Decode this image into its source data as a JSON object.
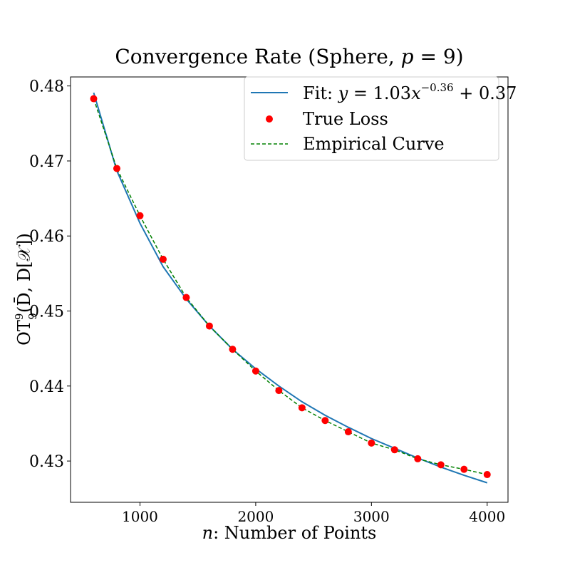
{
  "chart_data": {
    "type": "line",
    "title_prefix": "Convergence Rate (Sphere, ",
    "title_var": "p",
    "title_suffix": " = 9)",
    "xlabel_var": "n",
    "xlabel_text": ": Number of Points",
    "ylabel": {
      "base": "OT",
      "sup": "9",
      "sub": "9",
      "args": "(D̄, D[𝒳])"
    },
    "xlim": [
      400,
      4180
    ],
    "ylim": [
      0.4245,
      0.4812
    ],
    "xticks": [
      1000,
      2000,
      3000,
      4000
    ],
    "yticks": [
      0.43,
      0.44,
      0.45,
      0.46,
      0.47,
      0.48
    ],
    "legend_position": "upper right",
    "legend": {
      "fit": {
        "prefix": "Fit: ",
        "var": "y",
        "eq": " = 1.03",
        "x": "x",
        "exp": "−0.36",
        "tail": " + 0.37"
      },
      "true_loss": "True Loss",
      "empirical": "Empirical Curve"
    },
    "colors": {
      "fit": "#1f77b4",
      "true_loss": "#ff0000",
      "empirical": "#008000"
    },
    "x": [
      600,
      800,
      1000,
      1200,
      1400,
      1600,
      1800,
      2000,
      2200,
      2400,
      2600,
      2800,
      3000,
      3200,
      3400,
      3600,
      3800,
      4000
    ],
    "series": [
      {
        "name": "Fit",
        "style": "solid-line",
        "values": [
          0.4791,
          0.4687,
          0.4617,
          0.4559,
          0.4516,
          0.448,
          0.4449,
          0.4423,
          0.44,
          0.4379,
          0.4361,
          0.4345,
          0.433,
          0.4317,
          0.4304,
          0.4292,
          0.4281,
          0.4271
        ]
      },
      {
        "name": "True Loss",
        "style": "markers",
        "values": [
          0.4783,
          0.469,
          0.4627,
          0.4569,
          0.4518,
          0.448,
          0.4449,
          0.442,
          0.4394,
          0.4371,
          0.4354,
          0.4339,
          0.4324,
          0.4315,
          0.4303,
          0.4295,
          0.4289,
          0.4282
        ]
      },
      {
        "name": "Empirical Curve",
        "style": "dashed-line",
        "values": [
          0.4783,
          0.469,
          0.4627,
          0.4569,
          0.4518,
          0.448,
          0.4449,
          0.442,
          0.4394,
          0.4371,
          0.4354,
          0.4339,
          0.4324,
          0.4315,
          0.4303,
          0.4295,
          0.4289,
          0.4282
        ]
      }
    ]
  }
}
